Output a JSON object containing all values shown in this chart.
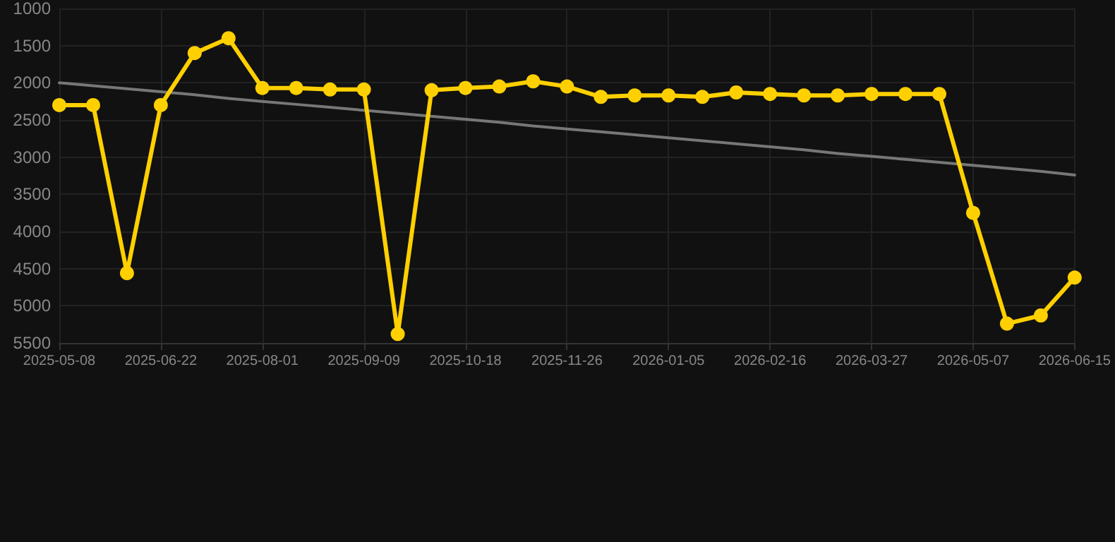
{
  "chart_data": {
    "type": "line",
    "categories": [
      "2025-05-08",
      null,
      null,
      "2025-06-22",
      null,
      null,
      "2025-08-01",
      null,
      null,
      "2025-09-09",
      null,
      null,
      "2025-10-18",
      null,
      null,
      "2025-11-26",
      null,
      null,
      "2026-01-05",
      null,
      null,
      "2026-02-16",
      null,
      null,
      "2026-03-27",
      null,
      null,
      "2026-05-07",
      null,
      null,
      "2026-06-15"
    ],
    "series": [
      {
        "color": "#ffd000",
        "marker": "circle",
        "values": [
          2300,
          2300,
          4560,
          2300,
          1600,
          1400,
          2070,
          2070,
          2090,
          2090,
          5380,
          2100,
          2070,
          2050,
          1980,
          2050,
          2190,
          2170,
          2170,
          2190,
          2130,
          2150,
          2170,
          2170,
          2150,
          2150,
          2150,
          3750,
          5240,
          5130,
          4620
        ]
      },
      {
        "color": "#777777",
        "marker": "none",
        "values": [
          2000,
          2040,
          2080,
          2120,
          2160,
          2210,
          2250,
          2290,
          2330,
          2370,
          2410,
          2450,
          2490,
          2530,
          2580,
          2620,
          2660,
          2700,
          2740,
          2780,
          2820,
          2860,
          2900,
          2950,
          2990,
          3030,
          3070,
          3110,
          3150,
          3190,
          3240
        ]
      }
    ],
    "ylim": [
      5500,
      1000
    ],
    "yticks": [
      1000,
      1500,
      2000,
      2500,
      3000,
      3500,
      4000,
      4500,
      5000,
      5500
    ],
    "grid": true,
    "line_style": "solid"
  }
}
